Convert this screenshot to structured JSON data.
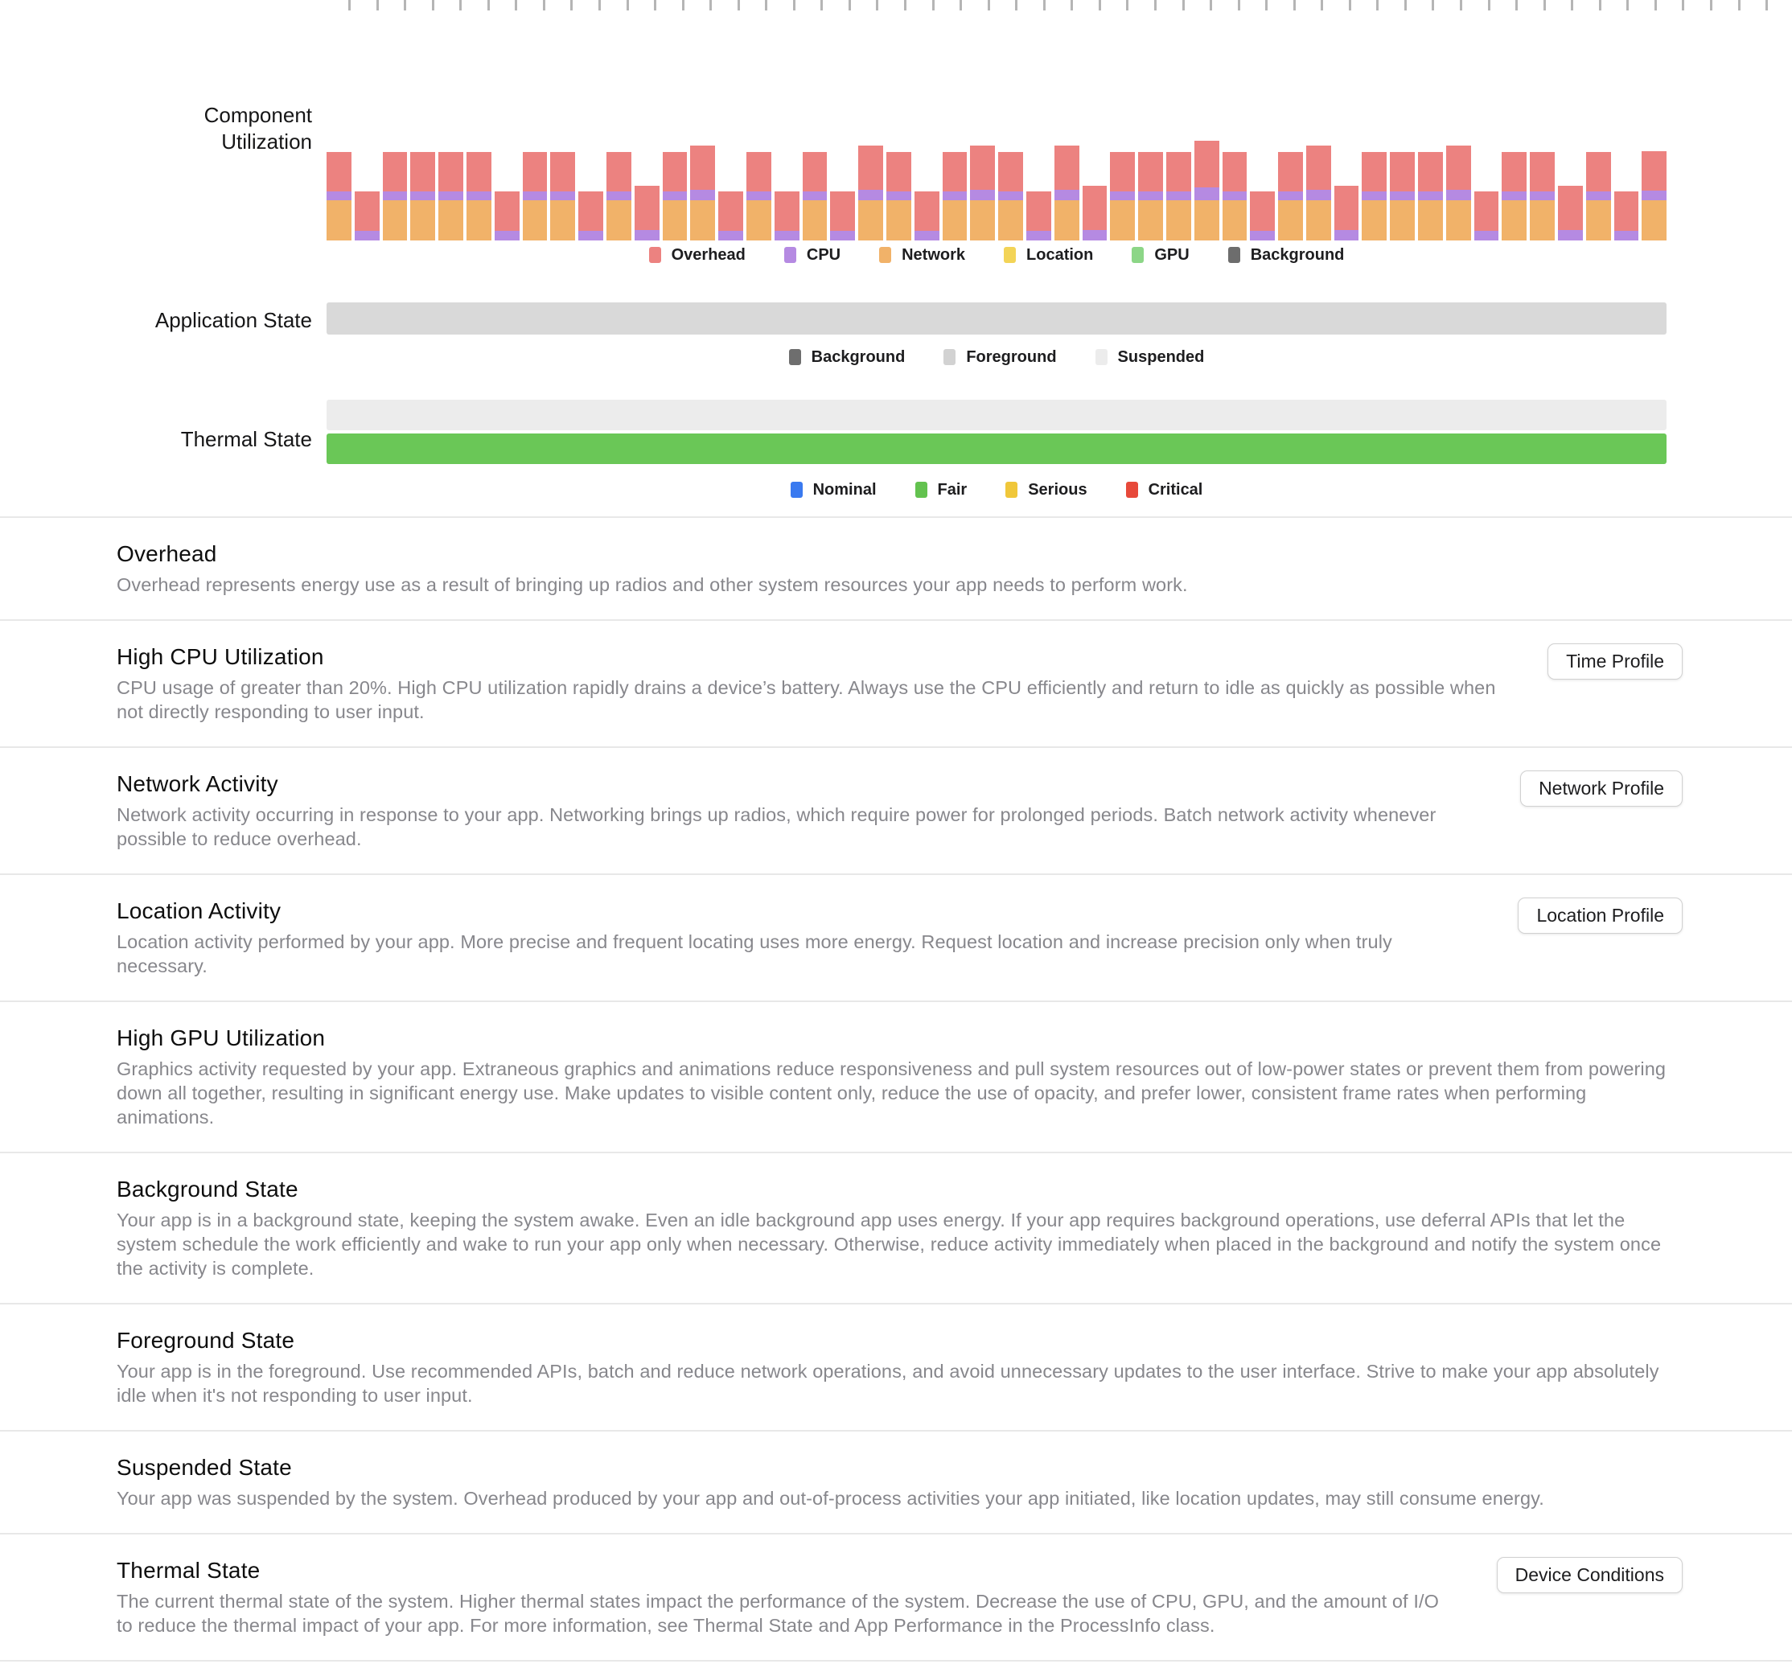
{
  "page": {
    "background": "#ffffff"
  },
  "ruler": {
    "tick_count": 52
  },
  "component_utilization": {
    "label": "Component Utilization",
    "legend": [
      {
        "label": "Overhead",
        "color": "#ec8280"
      },
      {
        "label": "CPU",
        "color": "#b58ae2"
      },
      {
        "label": "Network",
        "color": "#f1b269"
      },
      {
        "label": "Location",
        "color": "#f3d457"
      },
      {
        "label": "GPU",
        "color": "#8cd687"
      },
      {
        "label": "Background",
        "color": "#6d6d6d"
      }
    ],
    "chart_data": {
      "type": "bar",
      "stacked": true,
      "stack_order_bottom_to_top": [
        "network",
        "cpu",
        "overhead"
      ],
      "value_unit": "relative energy (px height, baseline 0)",
      "bars": [
        {
          "network": 50,
          "cpu": 11,
          "overhead": 49
        },
        {
          "network": 0,
          "cpu": 12,
          "overhead": 49
        },
        {
          "network": 50,
          "cpu": 11,
          "overhead": 49
        },
        {
          "network": 50,
          "cpu": 11,
          "overhead": 49
        },
        {
          "network": 50,
          "cpu": 11,
          "overhead": 49
        },
        {
          "network": 50,
          "cpu": 11,
          "overhead": 49
        },
        {
          "network": 0,
          "cpu": 12,
          "overhead": 49
        },
        {
          "network": 50,
          "cpu": 11,
          "overhead": 49
        },
        {
          "network": 50,
          "cpu": 11,
          "overhead": 49
        },
        {
          "network": 0,
          "cpu": 12,
          "overhead": 49
        },
        {
          "network": 50,
          "cpu": 11,
          "overhead": 49
        },
        {
          "network": 0,
          "cpu": 13,
          "overhead": 55
        },
        {
          "network": 50,
          "cpu": 11,
          "overhead": 49
        },
        {
          "network": 50,
          "cpu": 13,
          "overhead": 55
        },
        {
          "network": 0,
          "cpu": 12,
          "overhead": 49
        },
        {
          "network": 50,
          "cpu": 11,
          "overhead": 49
        },
        {
          "network": 0,
          "cpu": 12,
          "overhead": 49
        },
        {
          "network": 50,
          "cpu": 11,
          "overhead": 49
        },
        {
          "network": 0,
          "cpu": 12,
          "overhead": 49
        },
        {
          "network": 50,
          "cpu": 13,
          "overhead": 55
        },
        {
          "network": 50,
          "cpu": 11,
          "overhead": 49
        },
        {
          "network": 0,
          "cpu": 12,
          "overhead": 49
        },
        {
          "network": 50,
          "cpu": 11,
          "overhead": 49
        },
        {
          "network": 50,
          "cpu": 13,
          "overhead": 55
        },
        {
          "network": 50,
          "cpu": 11,
          "overhead": 49
        },
        {
          "network": 0,
          "cpu": 12,
          "overhead": 49
        },
        {
          "network": 50,
          "cpu": 13,
          "overhead": 55
        },
        {
          "network": 0,
          "cpu": 13,
          "overhead": 55
        },
        {
          "network": 50,
          "cpu": 11,
          "overhead": 49
        },
        {
          "network": 50,
          "cpu": 11,
          "overhead": 49
        },
        {
          "network": 50,
          "cpu": 11,
          "overhead": 49
        },
        {
          "network": 50,
          "cpu": 16,
          "overhead": 58
        },
        {
          "network": 50,
          "cpu": 11,
          "overhead": 49
        },
        {
          "network": 0,
          "cpu": 12,
          "overhead": 49
        },
        {
          "network": 50,
          "cpu": 11,
          "overhead": 49
        },
        {
          "network": 50,
          "cpu": 13,
          "overhead": 55
        },
        {
          "network": 0,
          "cpu": 13,
          "overhead": 55
        },
        {
          "network": 50,
          "cpu": 11,
          "overhead": 49
        },
        {
          "network": 50,
          "cpu": 11,
          "overhead": 49
        },
        {
          "network": 50,
          "cpu": 11,
          "overhead": 49
        },
        {
          "network": 50,
          "cpu": 13,
          "overhead": 55
        },
        {
          "network": 0,
          "cpu": 12,
          "overhead": 49
        },
        {
          "network": 50,
          "cpu": 11,
          "overhead": 49
        },
        {
          "network": 50,
          "cpu": 11,
          "overhead": 49
        },
        {
          "network": 0,
          "cpu": 13,
          "overhead": 55
        },
        {
          "network": 50,
          "cpu": 11,
          "overhead": 49
        },
        {
          "network": 0,
          "cpu": 12,
          "overhead": 49
        },
        {
          "network": 50,
          "cpu": 12,
          "overhead": 49
        }
      ]
    }
  },
  "application_state": {
    "label": "Application State",
    "bar": {
      "state": "Foreground",
      "color": "#d9d9d9"
    },
    "legend": [
      {
        "label": "Background",
        "color": "#6e6e6e"
      },
      {
        "label": "Foreground",
        "color": "#d2d2d2"
      },
      {
        "label": "Suspended",
        "color": "#ececec"
      }
    ]
  },
  "thermal_state_gauge": {
    "label": "Thermal State",
    "track_color": "#ececec",
    "current_state": "Fair",
    "bar_color": "#6ac757",
    "legend": [
      {
        "label": "Nominal",
        "color": "#3a7af0"
      },
      {
        "label": "Fair",
        "color": "#63c24f"
      },
      {
        "label": "Serious",
        "color": "#f0c73a"
      },
      {
        "label": "Critical",
        "color": "#e7493a"
      }
    ]
  },
  "sections": [
    {
      "title": "Overhead",
      "body": "Overhead represents energy use as a result of bringing up radios and other system resources your app needs to perform work.",
      "button": null
    },
    {
      "title": "High CPU Utilization",
      "body": "CPU usage of greater than 20%. High CPU utilization rapidly drains a device’s battery. Always use the CPU efficiently and return to idle as quickly as possible when not directly responding to user input.",
      "button": "Time Profile"
    },
    {
      "title": "Network Activity",
      "body": "Network activity occurring in response to your app. Networking brings up radios, which require power for prolonged periods. Batch network activity whenever possible to reduce overhead.",
      "button": "Network Profile"
    },
    {
      "title": "Location Activity",
      "body": "Location activity performed by your app. More precise and frequent locating uses more energy. Request location and increase precision only when truly necessary.",
      "button": "Location Profile"
    },
    {
      "title": "High GPU Utilization",
      "body": "Graphics activity requested by your app. Extraneous graphics and animations reduce responsiveness and pull system resources out of low-power states or prevent them from powering down all together, resulting in significant energy use. Make updates to visible content only, reduce the use of opacity, and prefer lower, consistent frame rates when performing animations.",
      "button": null
    },
    {
      "title": "Background State",
      "body": "Your app is in a background state, keeping the system awake. Even an idle background app uses energy. If your app requires background operations, use deferral APIs that let the system schedule the work efficiently and wake to run your app only when necessary. Otherwise, reduce activity immediately when placed in the background and notify the system once the activity is complete.",
      "button": null
    },
    {
      "title": "Foreground State",
      "body": "Your app is in the foreground. Use recommended APIs, batch and reduce network operations, and avoid unnecessary updates to the user interface. Strive to make your app absolutely idle when it's not responding to user input.",
      "button": null
    },
    {
      "title": "Suspended State",
      "body": "Your app was suspended by the system. Overhead produced by your app and out-of-process activities your app initiated, like location updates, may still consume energy.",
      "button": null
    },
    {
      "title": "Thermal State",
      "body": "The current thermal state of the system. Higher thermal states impact the performance of the system. Decrease the use of CPU, GPU, and the amount of I/O to reduce the thermal impact of your app. For more information, see Thermal State and App Performance in the ProcessInfo class.",
      "button": "Device Conditions"
    }
  ]
}
